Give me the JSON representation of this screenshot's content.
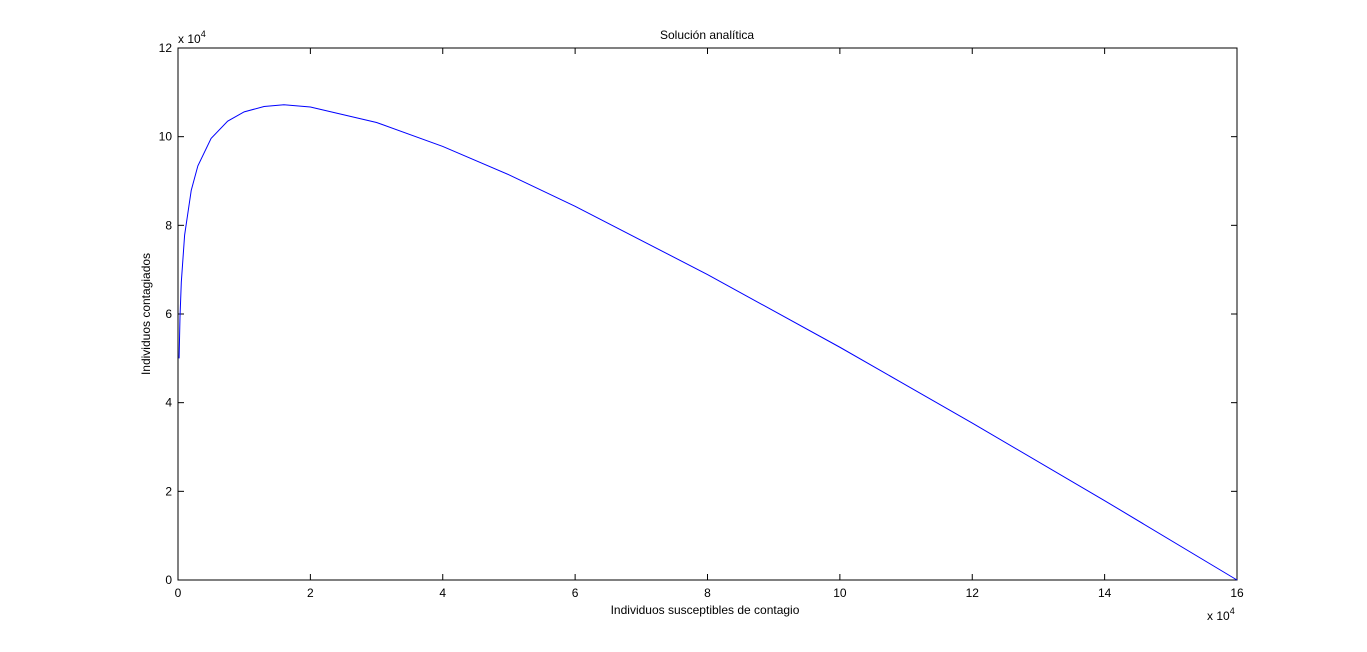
{
  "chart_data": {
    "type": "line",
    "title": "Solución analítica",
    "xlabel": "Individuos susceptibles de contagio",
    "ylabel": "Individuos contagiados",
    "x_multiplier": {
      "base": "x 10",
      "exponent": "4"
    },
    "y_multiplier": {
      "base": "x 10",
      "exponent": "4"
    },
    "x": [
      0.0166,
      0.03,
      0.05,
      0.1,
      0.2,
      0.3,
      0.5,
      0.75,
      1,
      1.3,
      1.6,
      2,
      3,
      4,
      5,
      6,
      8,
      10,
      12,
      14,
      16
    ],
    "series": [
      {
        "color": "#0000ff",
        "values": [
          5.0,
          5.92,
          6.72,
          7.78,
          8.79,
          9.34,
          9.96,
          10.35,
          10.56,
          10.68,
          10.72,
          10.67,
          10.32,
          9.78,
          9.14,
          8.43,
          6.89,
          5.25,
          3.54,
          1.79,
          0
        ]
      }
    ],
    "xlim": [
      0,
      16
    ],
    "ylim": [
      0,
      12
    ],
    "xticks": [
      0,
      2,
      4,
      6,
      8,
      10,
      12,
      14,
      16
    ],
    "yticks": [
      0,
      2,
      4,
      6,
      8,
      10,
      12
    ]
  }
}
